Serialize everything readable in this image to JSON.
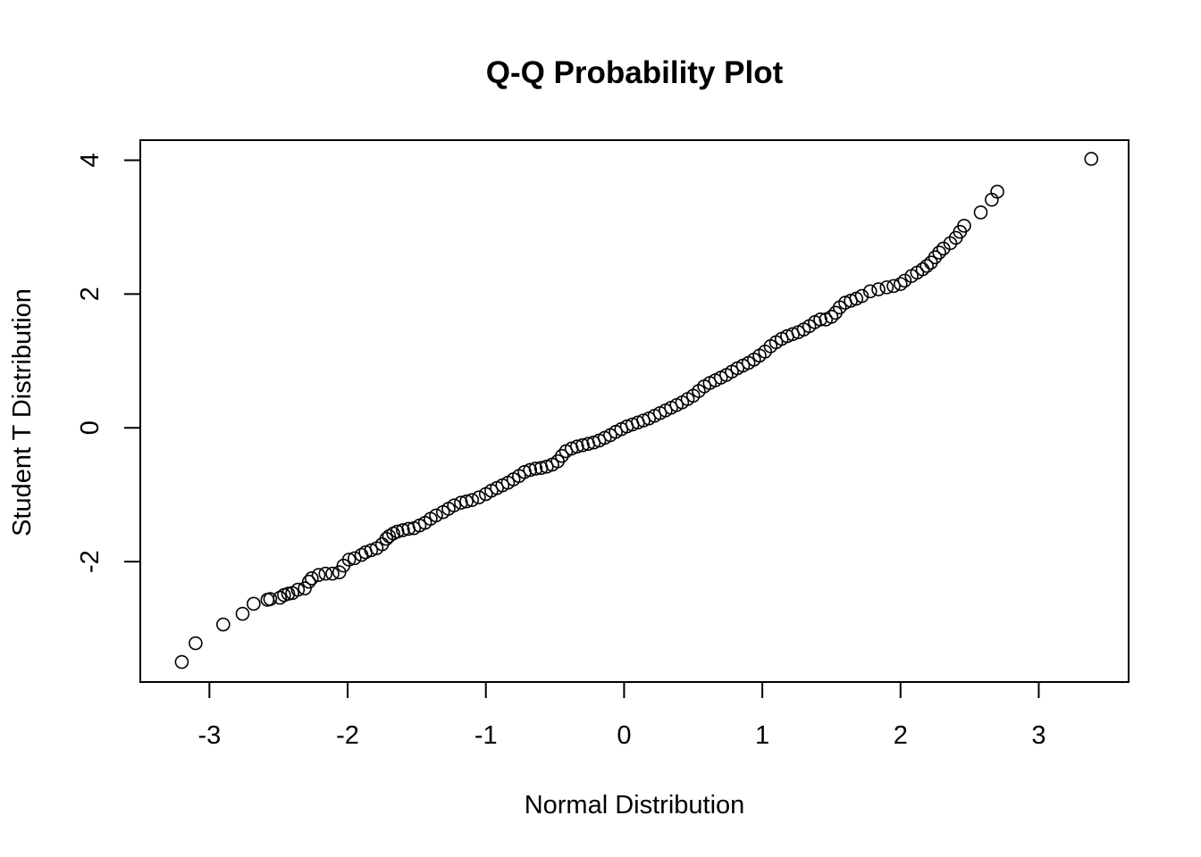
{
  "chart_data": {
    "type": "scatter",
    "title": "Q-Q Probability Plot",
    "xlabel": "Normal Distribution",
    "ylabel": "Student T Distribution",
    "xlim": [
      -3.5,
      3.65
    ],
    "ylim": [
      -3.8,
      4.3
    ],
    "x_ticks": [
      -3,
      -2,
      -1,
      0,
      1,
      2,
      3
    ],
    "y_ticks": [
      -2,
      0,
      2,
      4
    ],
    "x_tick_labels": [
      "-3",
      "-2",
      "-1",
      "0",
      "1",
      "2",
      "3"
    ],
    "y_tick_labels": [
      "-2",
      "0",
      "2",
      "4"
    ],
    "grid": false,
    "marker": "open-circle",
    "points": [
      [
        -3.2,
        -3.5
      ],
      [
        -3.1,
        -3.22
      ],
      [
        -2.9,
        -2.94
      ],
      [
        -2.76,
        -2.78
      ],
      [
        -2.68,
        -2.63
      ],
      [
        -2.58,
        -2.57
      ],
      [
        -2.56,
        -2.56
      ],
      [
        -2.49,
        -2.54
      ],
      [
        -2.46,
        -2.5
      ],
      [
        -2.43,
        -2.48
      ],
      [
        -2.4,
        -2.47
      ],
      [
        -2.36,
        -2.42
      ],
      [
        -2.31,
        -2.4
      ],
      [
        -2.28,
        -2.3
      ],
      [
        -2.26,
        -2.25
      ],
      [
        -2.21,
        -2.2
      ],
      [
        -2.16,
        -2.18
      ],
      [
        -2.11,
        -2.18
      ],
      [
        -2.06,
        -2.16
      ],
      [
        -2.03,
        -2.06
      ],
      [
        -1.99,
        -1.97
      ],
      [
        -1.95,
        -1.95
      ],
      [
        -1.9,
        -1.9
      ],
      [
        -1.87,
        -1.86
      ],
      [
        -1.83,
        -1.83
      ],
      [
        -1.79,
        -1.8
      ],
      [
        -1.75,
        -1.74
      ],
      [
        -1.72,
        -1.66
      ],
      [
        -1.7,
        -1.62
      ],
      [
        -1.67,
        -1.58
      ],
      [
        -1.64,
        -1.55
      ],
      [
        -1.6,
        -1.53
      ],
      [
        -1.56,
        -1.51
      ],
      [
        -1.52,
        -1.5
      ],
      [
        -1.48,
        -1.46
      ],
      [
        -1.44,
        -1.42
      ],
      [
        -1.4,
        -1.36
      ],
      [
        -1.36,
        -1.31
      ],
      [
        -1.31,
        -1.26
      ],
      [
        -1.27,
        -1.21
      ],
      [
        -1.23,
        -1.16
      ],
      [
        -1.18,
        -1.12
      ],
      [
        -1.14,
        -1.1
      ],
      [
        -1.1,
        -1.08
      ],
      [
        -1.05,
        -1.04
      ],
      [
        -1.0,
        -0.99
      ],
      [
        -0.96,
        -0.94
      ],
      [
        -0.92,
        -0.9
      ],
      [
        -0.88,
        -0.86
      ],
      [
        -0.84,
        -0.82
      ],
      [
        -0.8,
        -0.77
      ],
      [
        -0.76,
        -0.72
      ],
      [
        -0.72,
        -0.66
      ],
      [
        -0.68,
        -0.63
      ],
      [
        -0.64,
        -0.61
      ],
      [
        -0.6,
        -0.6
      ],
      [
        -0.56,
        -0.58
      ],
      [
        -0.52,
        -0.55
      ],
      [
        -0.48,
        -0.5
      ],
      [
        -0.45,
        -0.42
      ],
      [
        -0.42,
        -0.35
      ],
      [
        -0.38,
        -0.31
      ],
      [
        -0.34,
        -0.28
      ],
      [
        -0.3,
        -0.26
      ],
      [
        -0.26,
        -0.24
      ],
      [
        -0.22,
        -0.22
      ],
      [
        -0.18,
        -0.19
      ],
      [
        -0.14,
        -0.15
      ],
      [
        -0.1,
        -0.11
      ],
      [
        -0.06,
        -0.06
      ],
      [
        -0.02,
        -0.02
      ],
      [
        0.02,
        0.02
      ],
      [
        0.06,
        0.05
      ],
      [
        0.1,
        0.08
      ],
      [
        0.14,
        0.11
      ],
      [
        0.18,
        0.14
      ],
      [
        0.22,
        0.18
      ],
      [
        0.26,
        0.22
      ],
      [
        0.3,
        0.26
      ],
      [
        0.34,
        0.3
      ],
      [
        0.38,
        0.34
      ],
      [
        0.42,
        0.38
      ],
      [
        0.46,
        0.43
      ],
      [
        0.5,
        0.48
      ],
      [
        0.54,
        0.55
      ],
      [
        0.58,
        0.62
      ],
      [
        0.62,
        0.67
      ],
      [
        0.66,
        0.71
      ],
      [
        0.7,
        0.75
      ],
      [
        0.74,
        0.79
      ],
      [
        0.78,
        0.84
      ],
      [
        0.82,
        0.89
      ],
      [
        0.86,
        0.93
      ],
      [
        0.9,
        0.97
      ],
      [
        0.94,
        1.02
      ],
      [
        0.98,
        1.08
      ],
      [
        1.02,
        1.14
      ],
      [
        1.06,
        1.22
      ],
      [
        1.1,
        1.28
      ],
      [
        1.14,
        1.33
      ],
      [
        1.18,
        1.37
      ],
      [
        1.22,
        1.4
      ],
      [
        1.26,
        1.43
      ],
      [
        1.3,
        1.47
      ],
      [
        1.34,
        1.52
      ],
      [
        1.38,
        1.58
      ],
      [
        1.42,
        1.62
      ],
      [
        1.46,
        1.62
      ],
      [
        1.5,
        1.66
      ],
      [
        1.53,
        1.72
      ],
      [
        1.56,
        1.8
      ],
      [
        1.6,
        1.87
      ],
      [
        1.64,
        1.9
      ],
      [
        1.68,
        1.93
      ],
      [
        1.72,
        1.97
      ],
      [
        1.78,
        2.04
      ],
      [
        1.84,
        2.07
      ],
      [
        1.9,
        2.1
      ],
      [
        1.95,
        2.12
      ],
      [
        2.0,
        2.15
      ],
      [
        2.03,
        2.2
      ],
      [
        2.08,
        2.27
      ],
      [
        2.12,
        2.32
      ],
      [
        2.16,
        2.37
      ],
      [
        2.19,
        2.42
      ],
      [
        2.22,
        2.47
      ],
      [
        2.25,
        2.55
      ],
      [
        2.28,
        2.62
      ],
      [
        2.31,
        2.68
      ],
      [
        2.36,
        2.76
      ],
      [
        2.4,
        2.84
      ],
      [
        2.43,
        2.93
      ],
      [
        2.46,
        3.02
      ],
      [
        2.58,
        3.22
      ],
      [
        2.66,
        3.41
      ],
      [
        2.7,
        3.53
      ],
      [
        3.38,
        4.02
      ]
    ]
  }
}
